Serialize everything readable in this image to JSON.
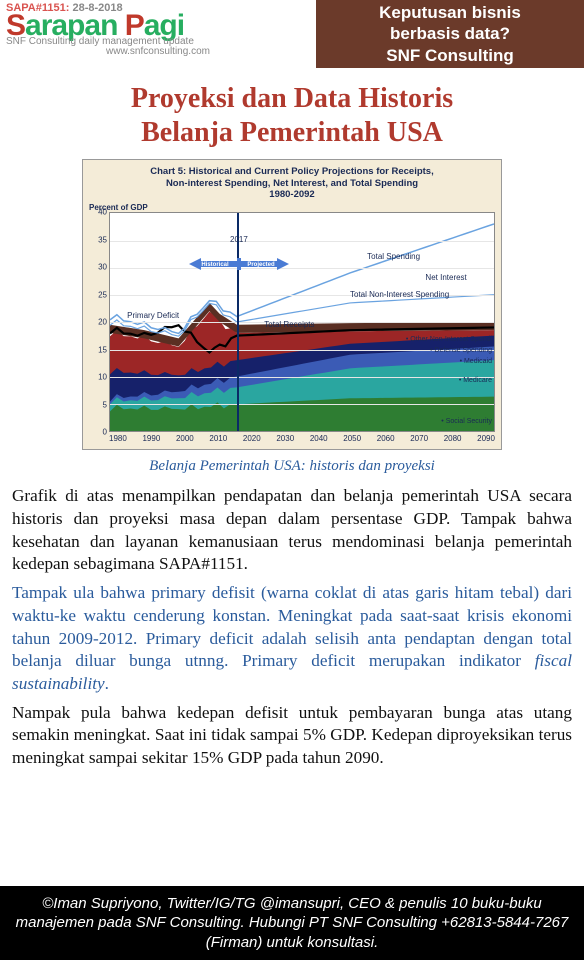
{
  "header": {
    "sapa_prefix": "SAPA#",
    "sapa_number": "1151:",
    "sapa_date": "28-8-2018",
    "brand_word1": "Sarapan",
    "brand_word2": "Pagi",
    "brand_subtitle": "SNF Consulting daily management update",
    "brand_site": "www.snfconsulting.com",
    "callout_line1": "Keputusan bisnis",
    "callout_line2": "berbasis data?",
    "callout_line3": "SNF Consulting"
  },
  "title_line1": "Proyeksi dan Data Historis",
  "title_line2": "Belanja Pemerintah USA",
  "chart": {
    "title_l1": "Chart 5:  Historical and Current Policy Projections for Receipts,",
    "title_l2": "Non-interest Spending, Net Interest, and Total Spending",
    "title_l3": "1980-2092",
    "ylabel": "Percent of GDP",
    "ymin": 0,
    "ymax": 40,
    "ystep": 5,
    "xticks": [
      "1980",
      "1990",
      "2000",
      "2010",
      "2020",
      "2030",
      "2040",
      "2050",
      "2060",
      "2070",
      "2080",
      "2090"
    ],
    "divider_year": 2017,
    "arrow_left": "Historical",
    "arrow_right": "Projected",
    "year_label": "2017",
    "line_labels": {
      "total_spending": "Total Spending",
      "total_noninterest": "Total Non-Interest Spending",
      "net_interest": "Net Interest",
      "total_receipts": "Total Receipts",
      "primary_deficit": "Primary Deficit"
    },
    "legend": {
      "other": "Other Non-Interest Spendi",
      "defense": "Defense Spending",
      "medicaid": "Medicaid",
      "medicare": "Medicare",
      "social": "Social Security"
    },
    "colors": {
      "bg_frame": "#f4ecd8",
      "plot_bg": "#ffffff",
      "grid": "#e6e6e6",
      "social": "#2e7d32",
      "medicare": "#2aa6a0",
      "medicaid": "#3b5bb5",
      "defense": "#16216a",
      "other": "#9c2626",
      "primary_deficit": "#5a2f23",
      "receipts_line": "#000000",
      "total_spending_line": "#6aa3e0",
      "noninterest_line": "#6aa3e0",
      "arrow": "#4a7bd4",
      "divider": "#0a2a66"
    },
    "series": {
      "social": {
        "1980": 4.2,
        "2000": 4.1,
        "2017": 4.9,
        "2050": 6.0,
        "2092": 6.3
      },
      "medicare": {
        "1980": 5.5,
        "2000": 6.1,
        "2017": 8.0,
        "2050": 11.5,
        "2092": 13.0
      },
      "medicaid": {
        "1980": 6.0,
        "2000": 7.3,
        "2017": 10.0,
        "2050": 14.0,
        "2092": 15.5
      },
      "defense": {
        "1980": 11.0,
        "2000": 10.3,
        "2017": 13.0,
        "2050": 16.0,
        "2092": 17.5
      },
      "other": {
        "1980": 18.0,
        "1990": 17.0,
        "2000": 15.5,
        "2009": 22.0,
        "2012": 20.0,
        "2017": 18.0,
        "2050": 18.3,
        "2092": 18.5
      },
      "receipts": {
        "1980": 18.5,
        "1990": 17.5,
        "2000": 19.5,
        "2009": 14.5,
        "2012": 15.5,
        "2017": 17.5,
        "2050": 18.5,
        "2092": 19.0
      },
      "noninterest": {
        "1980": 20.0,
        "2000": 17.5,
        "2009": 23.5,
        "2017": 20.0,
        "2050": 23.5,
        "2092": 25.0
      },
      "total_spending": {
        "1980": 21.0,
        "2000": 18.0,
        "2009": 24.0,
        "2017": 21.0,
        "2050": 29.0,
        "2092": 38.0
      }
    }
  },
  "caption": "Belanja Pemerintah USA: historis dan proyeksi",
  "para1": "Grafik di atas menampilkan pendapatan dan belanja pemerintah USA secara historis dan proyeksi masa depan dalam persentase GDP. Tampak bahwa kesehatan dan layanan kemanusiaan terus mendominasi belanja pemerintah kedepan sebagimana SAPA#1151.",
  "para2a": "Tampak ula bahwa primary defisit (warna coklat di atas garis hitam tebal) dari waktu-ke waktu cenderung konstan. Meningkat pada saat-saat krisis ekonomi tahun 2009-2012. Primary deficit adalah selisih anta pendaptan dengan total belanja diluar bunga utnng. Primary deficit merupakan indikator ",
  "para2b": "fiscal sustainability",
  "para2c": ".",
  "para3": "Nampak pula bahwa kedepan defisit untuk pembayaran bunga atas utang semakin meningkat. Saat ini tidak sampai 5% GDP. Kedepan diproyeksikan terus meningkat sampai sekitar 15% GDP pada tahun 2090.",
  "footer": "©Iman Supriyono, Twitter/IG/TG @imansupri, CEO & penulis 10 buku-buku manajemen pada SNF Consulting.  Hubungi PT SNF Consulting +62813-5844-7267 (Firman)  untuk konsultasi."
}
